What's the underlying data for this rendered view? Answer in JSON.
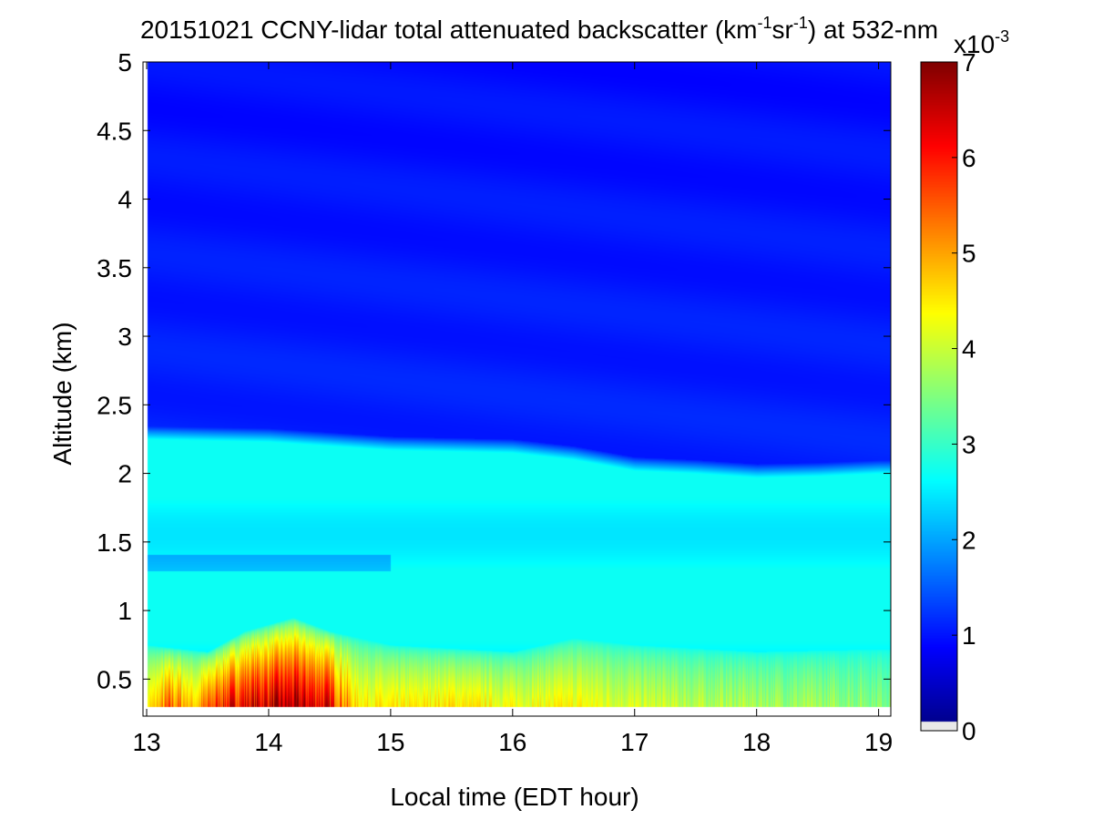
{
  "chart_data": {
    "type": "heatmap",
    "title_parts": {
      "prefix": "20151021 CCNY-lidar total attenuated backscatter (km",
      "sup1": "-1",
      "mid": "sr",
      "sup2": "-1",
      "suffix": ") at 532-nm"
    },
    "xlabel": "Local time (EDT hour)",
    "ylabel": "Altitude (km)",
    "xlim": [
      12.97,
      19.1
    ],
    "ylim": [
      0.23,
      5.0
    ],
    "x_ticks": [
      "13",
      "14",
      "15",
      "16",
      "17",
      "18",
      "19"
    ],
    "y_ticks": [
      "0.5",
      "1",
      "1.5",
      "2",
      "2.5",
      "3",
      "3.5",
      "4",
      "4.5",
      "5"
    ],
    "data_bottom_km": 0.3,
    "colorbar": {
      "colormap": "jet",
      "range": [
        0,
        7
      ],
      "ticks": [
        "0",
        "1",
        "2",
        "3",
        "4",
        "5",
        "6",
        "7"
      ],
      "multiplier_base": "x10",
      "multiplier_exp": "-3"
    },
    "features": {
      "pbl_top_km": [
        {
          "t": 13.0,
          "h": 2.3
        },
        {
          "t": 14.0,
          "h": 2.28
        },
        {
          "t": 15.0,
          "h": 2.22
        },
        {
          "t": 16.0,
          "h": 2.2
        },
        {
          "t": 16.5,
          "h": 2.15
        },
        {
          "t": 17.0,
          "h": 2.07
        },
        {
          "t": 17.5,
          "h": 2.05
        },
        {
          "t": 18.0,
          "h": 2.02
        },
        {
          "t": 18.5,
          "h": 2.03
        },
        {
          "t": 19.0,
          "h": 2.05
        }
      ],
      "aerosol_peak_e3": [
        {
          "t": 13.0,
          "v": 4.4
        },
        {
          "t": 13.2,
          "v": 5.4
        },
        {
          "t": 13.4,
          "v": 4.7
        },
        {
          "t": 13.6,
          "v": 6.0
        },
        {
          "t": 13.9,
          "v": 6.4
        },
        {
          "t": 14.2,
          "v": 6.6
        },
        {
          "t": 14.5,
          "v": 6.2
        },
        {
          "t": 14.7,
          "v": 4.6
        },
        {
          "t": 15.0,
          "v": 4.4
        },
        {
          "t": 15.5,
          "v": 4.6
        },
        {
          "t": 16.0,
          "v": 4.3
        },
        {
          "t": 16.5,
          "v": 4.4
        },
        {
          "t": 17.0,
          "v": 4.1
        },
        {
          "t": 17.5,
          "v": 3.9
        },
        {
          "t": 18.0,
          "v": 3.8
        },
        {
          "t": 18.5,
          "v": 3.7
        },
        {
          "t": 19.0,
          "v": 3.6
        }
      ],
      "plume_top_km": [
        {
          "t": 13.0,
          "h": 0.75
        },
        {
          "t": 13.5,
          "h": 0.7
        },
        {
          "t": 13.8,
          "h": 0.85
        },
        {
          "t": 14.2,
          "h": 0.95
        },
        {
          "t": 14.5,
          "h": 0.85
        },
        {
          "t": 15.0,
          "h": 0.75
        },
        {
          "t": 16.0,
          "h": 0.7
        },
        {
          "t": 16.5,
          "h": 0.8
        },
        {
          "t": 17.0,
          "h": 0.75
        },
        {
          "t": 18.0,
          "h": 0.7
        },
        {
          "t": 19.0,
          "h": 0.72
        }
      ],
      "free_troposphere_e3": 1.1,
      "pbl_background_e3": 2.7
    }
  }
}
